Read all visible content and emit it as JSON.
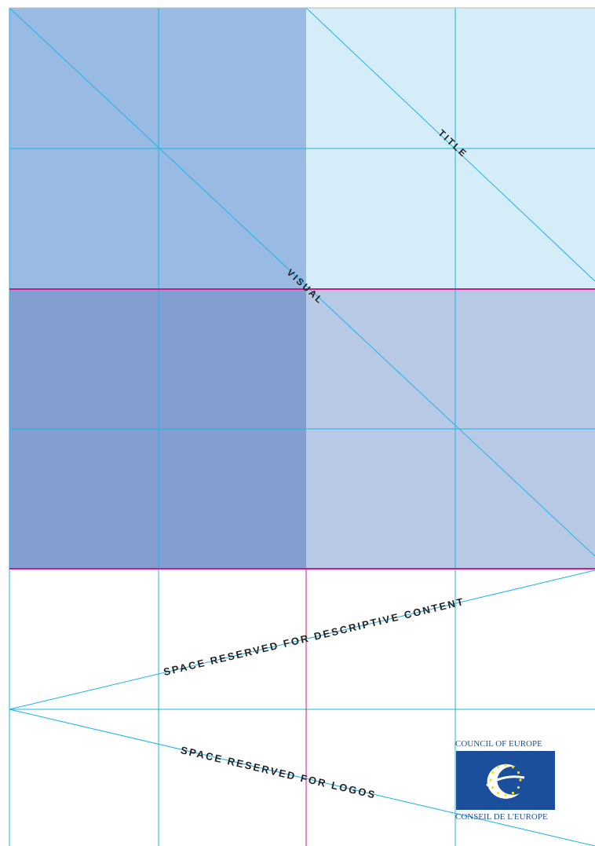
{
  "zones": {
    "title_label": "TITLE",
    "visual_label": "VISUAL",
    "descriptive_label": "SPACE RESERVED FOR DESCRIPTIVE CONTENT",
    "logos_label": "SPACE RESERVED FOR LOGOS"
  },
  "logo": {
    "top_text": "COUNCIL OF EUROPE",
    "bottom_text": "CONSEIL DE L'EUROPE"
  },
  "colors": {
    "visual_top": "#99bae2",
    "title_bg": "#d5ecf9",
    "visual_bottom": "#849ecf",
    "lower_right": "#b8c9e6",
    "grid_line": "#1eb4e8",
    "accent_line": "#d3198a",
    "logo_blue": "#1b4f9c",
    "logo_stars": "#ffdd00"
  }
}
